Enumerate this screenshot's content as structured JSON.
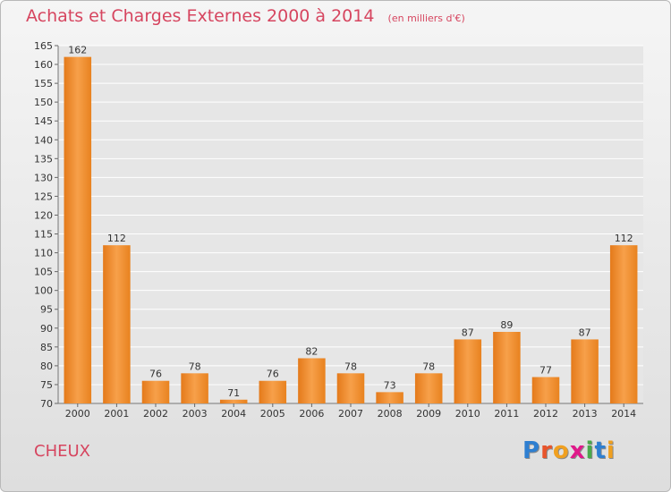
{
  "header": {
    "title": "Achats et Charges Externes 2000 à 2014",
    "unit": "(en milliers d'€)"
  },
  "footer": {
    "commune": "CHEUX",
    "logo_text": "Proxiti",
    "logo_colors": [
      "#2e7fd1",
      "#e8542b",
      "#f0a020",
      "#e0198a",
      "#49a94a",
      "#2e7fd1",
      "#f0a020"
    ]
  },
  "chart_data": {
    "type": "bar",
    "title": "Achats et Charges Externes 2000 à 2014",
    "subtitle": "(en milliers d'€)",
    "categories": [
      "2000",
      "2001",
      "2002",
      "2003",
      "2004",
      "2005",
      "2006",
      "2007",
      "2008",
      "2009",
      "2010",
      "2011",
      "2012",
      "2013",
      "2014"
    ],
    "values": [
      162,
      112,
      76,
      78,
      71,
      76,
      82,
      78,
      73,
      78,
      87,
      89,
      77,
      87,
      112
    ],
    "ylim": [
      70,
      165
    ],
    "yticks": [
      70,
      75,
      80,
      85,
      90,
      95,
      100,
      105,
      110,
      115,
      120,
      125,
      130,
      135,
      140,
      145,
      150,
      155,
      160,
      165
    ],
    "grid": true,
    "bar_color": "#f28e2b"
  }
}
